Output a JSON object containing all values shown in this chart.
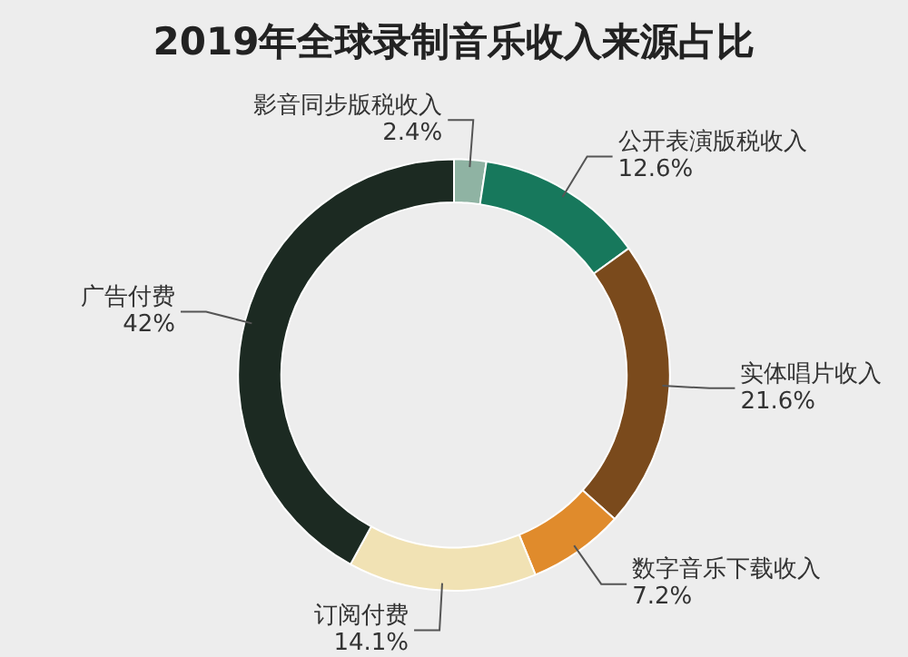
{
  "chart_data": {
    "type": "donut",
    "title": "2019年全球录制音乐收入来源占比",
    "categories": [
      "影音同步版税收入",
      "公开表演版税收入",
      "实体唱片收入",
      "数字音乐下载收入",
      "订阅付费",
      "广告付费"
    ],
    "values": [
      2.4,
      12.6,
      21.6,
      7.2,
      14.1,
      42
    ],
    "value_labels": [
      "2.4%",
      "12.6%",
      "21.6%",
      "7.2%",
      "14.1%",
      "42%"
    ],
    "colors": [
      "#8fb3a3",
      "#17785c",
      "#7a4a1c",
      "#e08b2c",
      "#f1e2b4",
      "#1c2a22"
    ],
    "legend": false
  }
}
